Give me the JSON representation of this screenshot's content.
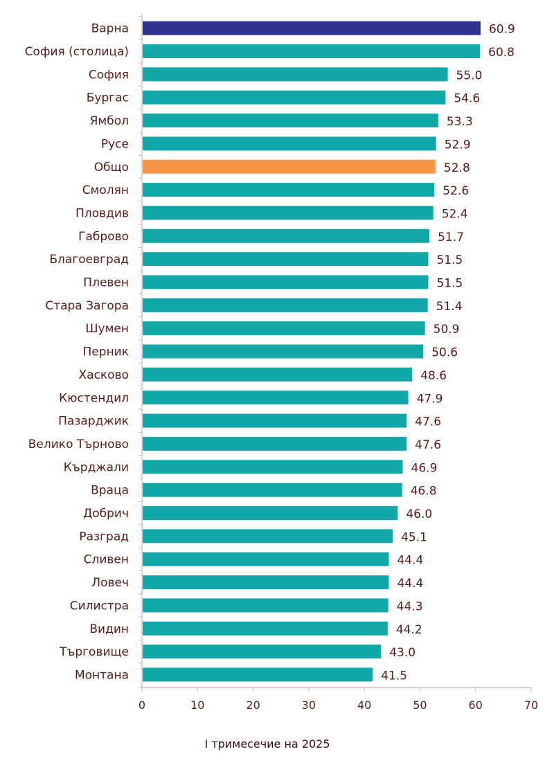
{
  "chart_data": {
    "type": "bar",
    "orientation": "horizontal",
    "title": "",
    "xlabel": "I тримесечие на 2025",
    "ylabel": "",
    "xlim": [
      0,
      70
    ],
    "xticks": [
      "0",
      "10",
      "20",
      "30",
      "40",
      "50",
      "60",
      "70"
    ],
    "grid": false,
    "categories": [
      "Варна",
      "София (столица)",
      "София",
      "Бургас",
      "Ямбол",
      "Русе",
      "Общо",
      "Смолян",
      "Пловдив",
      "Габрово",
      "Благоевград",
      "Плевен",
      "Стара Загора",
      "Шумен",
      "Перник",
      "Хасково",
      "Кюстендил",
      "Пазарджик",
      "Велико Търново",
      "Кърджали",
      "Враца",
      "Добрич",
      "Разград",
      "Сливен",
      "Ловеч",
      "Силистра",
      "Видин",
      "Търговище",
      "Монтана"
    ],
    "values": [
      60.9,
      60.8,
      55.0,
      54.6,
      53.3,
      52.9,
      52.8,
      52.6,
      52.4,
      51.7,
      51.5,
      51.5,
      51.4,
      50.9,
      50.6,
      48.6,
      47.9,
      47.6,
      47.6,
      46.9,
      46.8,
      46.0,
      45.1,
      44.4,
      44.4,
      44.3,
      44.2,
      43.0,
      41.5
    ],
    "value_labels": [
      "60.9",
      "60.8",
      "55.0",
      "54.6",
      "53.3",
      "52.9",
      "52.8",
      "52.6",
      "52.4",
      "51.7",
      "51.5",
      "51.5",
      "51.4",
      "50.9",
      "50.6",
      "48.6",
      "47.9",
      "47.6",
      "47.6",
      "46.9",
      "46.8",
      "46.0",
      "45.1",
      "44.4",
      "44.4",
      "44.3",
      "44.2",
      "43.0",
      "41.5"
    ],
    "colors": {
      "default": "#13a8a8",
      "highlight_top": "#30308f",
      "highlight_total": "#f79646",
      "axis": "#c8b4b4",
      "text": "#5a1a1a"
    },
    "highlight": {
      "Варна": "highlight_top",
      "Общо": "highlight_total"
    }
  }
}
